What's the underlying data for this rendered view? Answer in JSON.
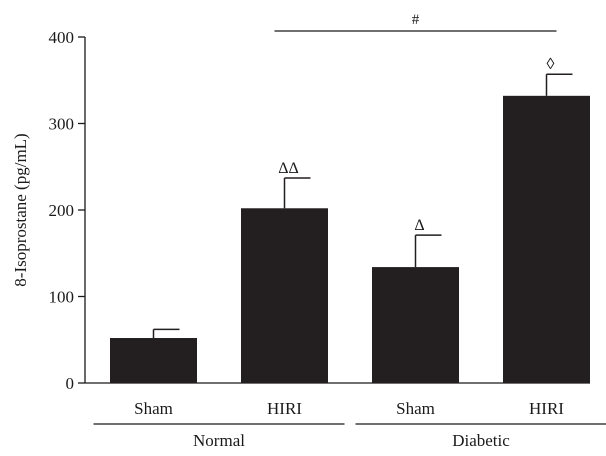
{
  "chart_data": {
    "type": "bar",
    "title": "",
    "xlabel": "",
    "ylabel": "8-Isoprostane (pg/mL)",
    "ylim": [
      0,
      400
    ],
    "yticks": [
      "0",
      "100",
      "200",
      "300",
      "400"
    ],
    "categories": [
      "Sham",
      "HIRI",
      "Sham",
      "HIRI"
    ],
    "values": [
      52,
      202,
      134,
      332
    ],
    "errors": [
      10,
      35,
      37,
      25
    ],
    "groups": [
      {
        "label": "Normal",
        "categories": [
          0,
          1
        ]
      },
      {
        "label": "Diabetic",
        "categories": [
          2,
          3
        ]
      }
    ],
    "bar_annotations": [
      "",
      "ΔΔ",
      "Δ",
      "◊"
    ],
    "comparison": {
      "from": 1,
      "to": 3,
      "label": "#"
    },
    "bar_color": "#231f20",
    "grid": false,
    "legend": "none"
  }
}
